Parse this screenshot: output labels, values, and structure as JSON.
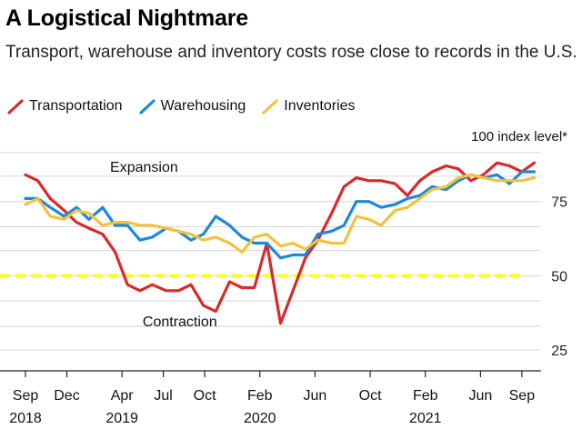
{
  "header": {
    "title": "A Logistical Nightmare",
    "subtitle": "Transport, warehouse and inventory costs rose close to records in the U.S."
  },
  "chart_data": {
    "type": "line",
    "title": "A Logistical Nightmare",
    "subtitle": "Transport, warehouse and inventory costs rose close to records in the U.S.",
    "ylabel": "100 index level*",
    "xlabel": "",
    "ylim": [
      18,
      100
    ],
    "xlim": [
      0,
      36.8
    ],
    "grid": true,
    "legend_position": "top-left",
    "y_ticks": [
      25,
      50,
      75
    ],
    "y_tick_labels": [
      "25",
      "50",
      "75"
    ],
    "x_ticks": [
      {
        "month": 0,
        "label": "Sep",
        "year": "2018"
      },
      {
        "month": 3,
        "label": "Dec",
        "year": ""
      },
      {
        "month": 7,
        "label": "Apr",
        "year": "2019"
      },
      {
        "month": 10,
        "label": "Jul",
        "year": ""
      },
      {
        "month": 13,
        "label": "Oct",
        "year": ""
      },
      {
        "month": 17,
        "label": "Feb",
        "year": "2020"
      },
      {
        "month": 21,
        "label": "Jun",
        "year": ""
      },
      {
        "month": 25,
        "label": "Oct",
        "year": ""
      },
      {
        "month": 29,
        "label": "Feb",
        "year": "2021"
      },
      {
        "month": 33,
        "label": "Jun",
        "year": ""
      },
      {
        "month": 36,
        "label": "Sep",
        "year": ""
      }
    ],
    "reference_line": {
      "value": 50,
      "color": "#ffff1a"
    },
    "annotations": [
      {
        "text": "Expansion",
        "month": 8.6,
        "value": 85
      },
      {
        "text": "Contraction",
        "month": 11.2,
        "value": 33
      }
    ],
    "x": [
      0,
      0.9,
      1.8,
      2.8,
      3.7,
      4.6,
      5.6,
      6.5,
      7.4,
      8.3,
      9.2,
      10.2,
      11.1,
      12,
      12.9,
      13.8,
      14.8,
      15.7,
      16.6,
      17.5,
      18.5,
      19.4,
      20.3,
      21.2,
      22.2,
      23.1,
      24,
      24.9,
      25.8,
      26.8,
      27.7,
      28.6,
      29.5,
      30.5,
      31.4,
      32.3,
      33.2,
      34.2,
      35.1,
      36,
      36.9
    ],
    "series": [
      {
        "name": "Transportation",
        "color": "#d92a2a",
        "values": [
          84,
          82,
          76,
          72,
          68,
          66,
          64,
          58,
          47,
          45,
          47,
          45,
          45,
          47,
          40,
          38,
          48,
          46,
          46,
          61,
          34,
          45,
          56,
          62,
          71,
          80,
          83,
          82,
          82,
          81,
          77,
          82,
          85,
          87,
          86,
          82,
          84,
          88,
          87,
          85,
          88
        ]
      },
      {
        "name": "Warehousing",
        "color": "#1e88d9",
        "values": [
          76,
          76,
          73,
          70,
          73,
          69,
          73,
          67,
          67,
          62,
          63,
          66,
          65,
          62,
          64,
          70,
          67,
          63,
          61,
          61,
          56,
          57,
          57,
          64,
          65,
          67,
          75,
          75,
          73,
          74,
          76,
          77,
          80,
          79,
          82,
          84,
          83,
          84,
          81,
          85,
          85
        ]
      },
      {
        "name": "Inventories",
        "color": "#f2c23e",
        "values": [
          74,
          76,
          70,
          69,
          72,
          71,
          67,
          68,
          68,
          67,
          67,
          66,
          65,
          64,
          62,
          63,
          61,
          58,
          63,
          64,
          60,
          61,
          59,
          62,
          61,
          61,
          70,
          69,
          67,
          72,
          73,
          76,
          79,
          80,
          83,
          84,
          83,
          82,
          82,
          82,
          83
        ]
      }
    ]
  }
}
